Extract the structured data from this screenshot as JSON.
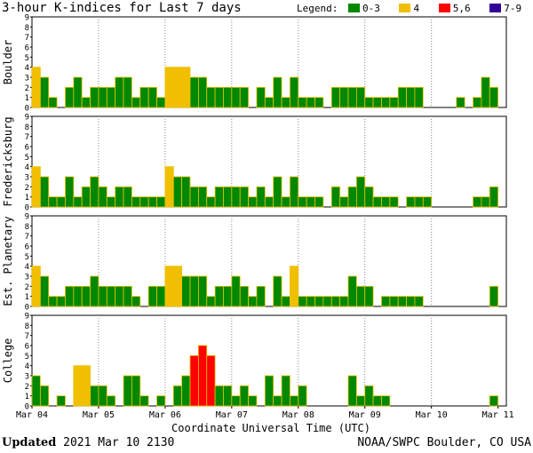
{
  "title": "3-hour K-indices for Last 7 days",
  "legend": {
    "label": "Legend:",
    "items": [
      {
        "label": "0-3",
        "color": "#008800"
      },
      {
        "label": "4",
        "color": "#f0c000"
      },
      {
        "label": "5,6",
        "color": "#ff0000"
      },
      {
        "label": "7-9",
        "color": "#330099"
      }
    ]
  },
  "footer": {
    "updated_label": "Updated",
    "updated_value": "2021 Mar 10 2130",
    "credit": "NOAA/SWPC Boulder, CO USA"
  },
  "chart_data": {
    "type": "bar",
    "xlabel": "Coordinate Universal Time (UTC)",
    "x_ticks": [
      "Mar 04",
      "Mar 05",
      "Mar 06",
      "Mar 07",
      "Mar 08",
      "Mar 09",
      "Mar 10",
      "Mar 11"
    ],
    "ylim": [
      0,
      9
    ],
    "y_ticks": [
      0,
      1,
      2,
      3,
      4,
      5,
      6,
      7,
      8,
      9
    ],
    "slots_per_day": 8,
    "colors": {
      "quiet": "#008800",
      "active": "#f0c000",
      "storm": "#ff0000",
      "severe": "#330099",
      "bar_outline": "#f0c000"
    },
    "series": [
      {
        "name": "Boulder",
        "values": [
          4,
          3,
          1,
          0,
          2,
          3,
          1,
          2,
          2,
          2,
          3,
          3,
          1,
          2,
          2,
          1,
          4,
          4,
          4,
          3,
          3,
          2,
          2,
          2,
          2,
          2,
          0,
          2,
          1,
          3,
          1,
          3,
          1,
          1,
          1,
          0,
          2,
          2,
          2,
          2,
          1,
          1,
          1,
          1,
          2,
          2,
          2,
          0,
          0,
          0,
          0,
          1,
          0,
          1,
          3,
          2,
          0
        ]
      },
      {
        "name": "Fredericksburg",
        "values": [
          4,
          3,
          1,
          1,
          3,
          1,
          2,
          3,
          2,
          1,
          2,
          2,
          1,
          1,
          1,
          1,
          4,
          3,
          3,
          2,
          2,
          1,
          2,
          2,
          2,
          2,
          1,
          2,
          1,
          3,
          1,
          3,
          1,
          1,
          1,
          0,
          2,
          1,
          2,
          3,
          2,
          1,
          1,
          1,
          0,
          1,
          1,
          1,
          0,
          0,
          0,
          0,
          0,
          1,
          1,
          2,
          0
        ]
      },
      {
        "name": "Est. Planetary",
        "values": [
          4,
          3,
          1,
          1,
          2,
          2,
          2,
          3,
          2,
          2,
          2,
          2,
          1,
          0,
          2,
          2,
          4,
          4,
          3,
          3,
          3,
          1,
          2,
          2,
          3,
          2,
          1,
          2,
          0,
          3,
          1,
          4,
          1,
          1,
          1,
          1,
          1,
          1,
          3,
          2,
          2,
          0,
          1,
          1,
          1,
          1,
          1,
          0,
          0,
          0,
          0,
          0,
          0,
          0,
          0,
          2,
          0
        ]
      },
      {
        "name": "College",
        "values": [
          3,
          2,
          0,
          1,
          0,
          4,
          4,
          2,
          2,
          1,
          0,
          3,
          3,
          1,
          0,
          1,
          0,
          2,
          3,
          5,
          6,
          5,
          2,
          2,
          1,
          2,
          1,
          0,
          3,
          1,
          3,
          1,
          2,
          0,
          0,
          0,
          0,
          0,
          3,
          1,
          2,
          1,
          1,
          0,
          0,
          0,
          0,
          0,
          0,
          0,
          0,
          0,
          0,
          0,
          0,
          1,
          0
        ]
      }
    ]
  }
}
